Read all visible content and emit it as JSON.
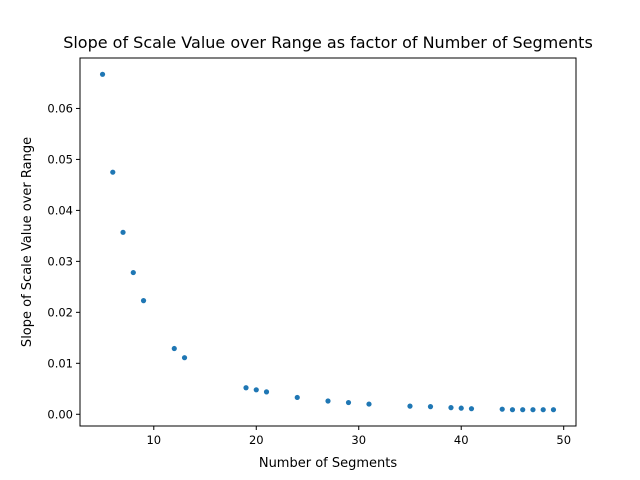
{
  "chart_data": {
    "type": "scatter",
    "title": "Slope of Scale Value over Range as factor of Number of Segments",
    "xlabel": "Number of Segments",
    "ylabel": "Slope of Scale Value over Range",
    "xlim": [
      2.8,
      51.2
    ],
    "ylim": [
      -0.0023,
      0.0699
    ],
    "x_ticks": [
      10,
      20,
      30,
      40,
      50
    ],
    "y_ticks": [
      0.0,
      0.01,
      0.02,
      0.03,
      0.04,
      0.05,
      0.06
    ],
    "x_tick_labels": [
      "10",
      "20",
      "30",
      "40",
      "50"
    ],
    "y_tick_labels": [
      "0.00",
      "0.01",
      "0.02",
      "0.03",
      "0.04",
      "0.05",
      "0.06"
    ],
    "grid": false,
    "marker_color": "#1f77b4",
    "series": [
      {
        "points": [
          [
            5,
            0.0667
          ],
          [
            6,
            0.0475
          ],
          [
            7,
            0.0357
          ],
          [
            8,
            0.0278
          ],
          [
            9,
            0.0223
          ],
          [
            12,
            0.0129
          ],
          [
            13,
            0.0111
          ],
          [
            19,
            0.0052
          ],
          [
            20,
            0.0048
          ],
          [
            21,
            0.0044
          ],
          [
            24,
            0.0033
          ],
          [
            27,
            0.0026
          ],
          [
            29,
            0.0023
          ],
          [
            31,
            0.002
          ],
          [
            35,
            0.0016
          ],
          [
            37,
            0.0015
          ],
          [
            39,
            0.0013
          ],
          [
            40,
            0.0012
          ],
          [
            41,
            0.0011
          ],
          [
            44,
            0.001
          ],
          [
            45,
            0.0009
          ],
          [
            46,
            0.0009
          ],
          [
            47,
            0.0009
          ],
          [
            48,
            0.0009
          ],
          [
            49,
            0.0009
          ]
        ]
      }
    ]
  }
}
